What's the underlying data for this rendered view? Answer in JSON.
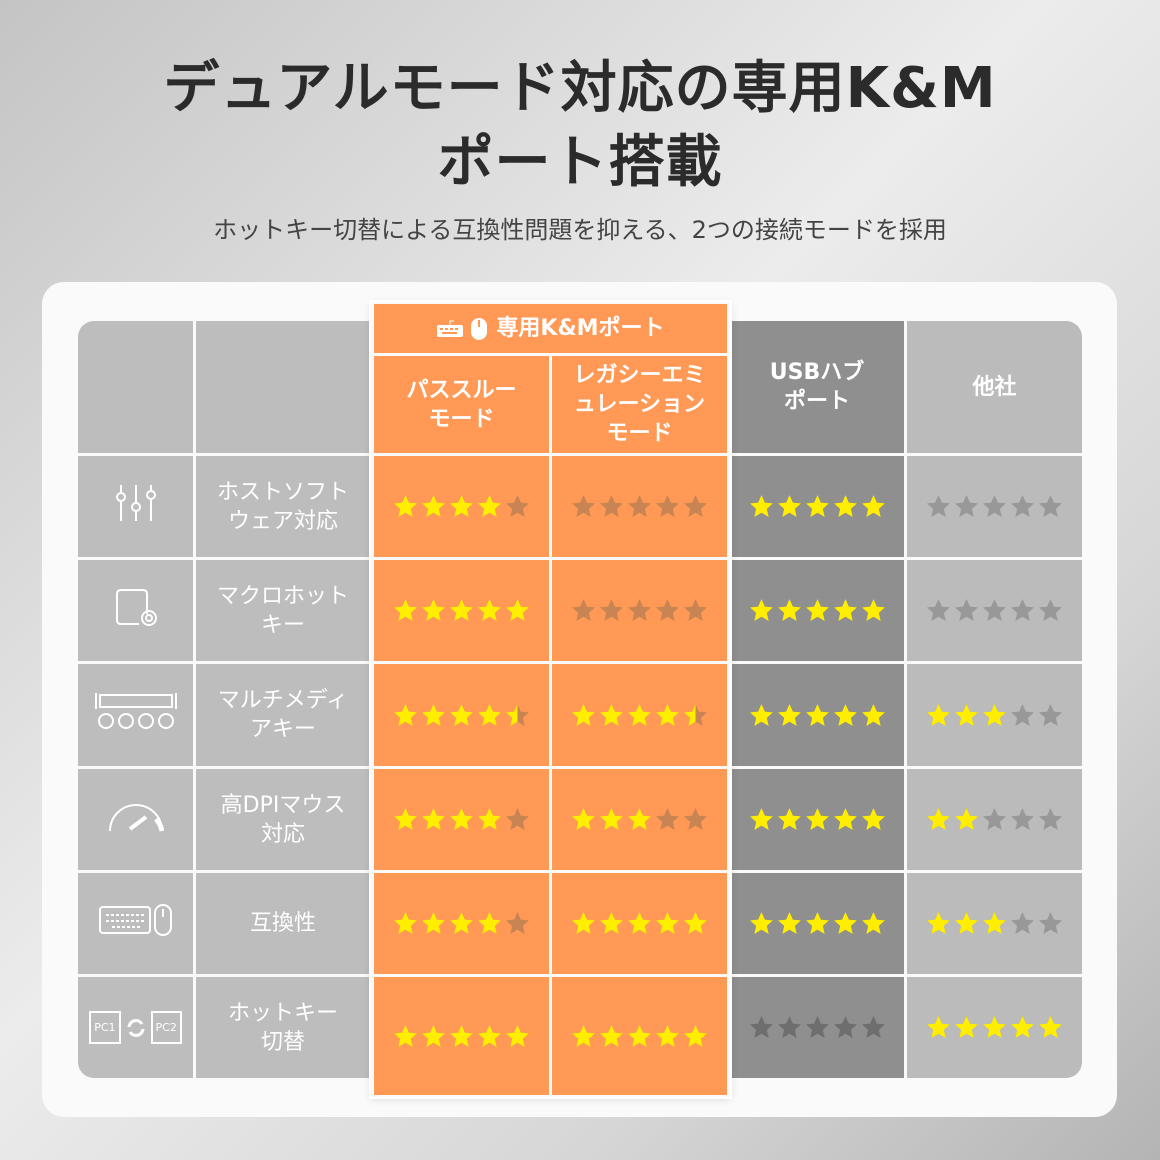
{
  "title_line1": "デュアルモード対応の専用K&M",
  "title_line2": "ポート搭載",
  "subtitle": "ホットキー切替による互換性問題を抑える、2つの接続モードを採用",
  "group_header": "専用K&Mポート",
  "columns": [
    "パススルー\nモード",
    "レガシーエミ\nュレーション\nモード",
    "USBハブ\nポート",
    "他社"
  ],
  "icon_text": {
    "pc1": "PC1",
    "pc2": "PC2"
  },
  "colors": {
    "orange": "#ff9955",
    "usb": "#8f8f8f",
    "other": "#bbbbbb",
    "star": "#ffee00"
  },
  "rows": [
    {
      "icon": "sliders-icon",
      "label": "ホストソフト\nウェア対応",
      "ratings": [
        4,
        0,
        5,
        0
      ]
    },
    {
      "icon": "macro-key-icon",
      "label": "マクロホット\nキー",
      "ratings": [
        5,
        0,
        5,
        0
      ]
    },
    {
      "icon": "media-keys-icon",
      "label": "マルチメディ\nアキー",
      "ratings": [
        4.5,
        4.5,
        5,
        3
      ]
    },
    {
      "icon": "speedometer-icon",
      "label": "高DPIマウス\n対応",
      "ratings": [
        4,
        3,
        5,
        2
      ]
    },
    {
      "icon": "keyboard-mouse-icon",
      "label": "互換性",
      "ratings": [
        4,
        5,
        5,
        3
      ]
    },
    {
      "icon": "pc-switch-icon",
      "label": "ホットキー\n切替",
      "ratings": [
        5,
        5,
        0,
        5
      ]
    }
  ]
}
